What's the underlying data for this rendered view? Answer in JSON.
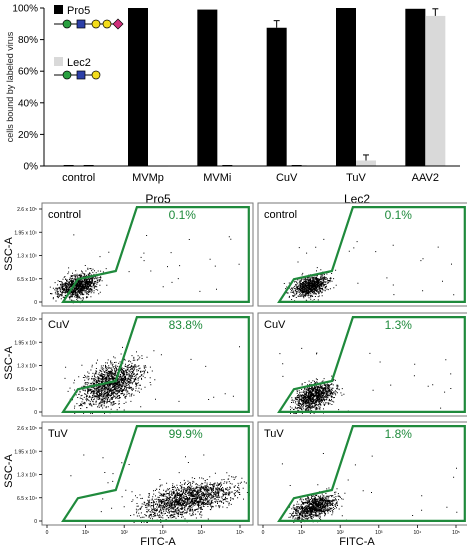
{
  "chart_data": [
    {
      "type": "bar",
      "ylabel": "cells bound by labeled virus",
      "ylim": [
        0,
        100
      ],
      "yticks": [
        "0%",
        "20%",
        "40%",
        "60%",
        "80%",
        "100%"
      ],
      "categories": [
        "control",
        "MVMp",
        "MVMi",
        "CuV",
        "TuV",
        "AAV2"
      ],
      "legend_position": "top-left",
      "series": [
        {
          "name": "Pro5",
          "color": "#000000",
          "values": [
            0.1,
            100,
            99,
            87.5,
            100,
            99.5
          ],
          "errors": [
            0,
            0,
            0,
            4.5,
            0,
            0
          ]
        },
        {
          "name": "Lec2",
          "color": "#d9d9d9",
          "values": [
            0.1,
            0,
            0.2,
            0.5,
            3.5,
            95
          ],
          "errors": [
            0,
            0,
            0,
            0,
            3.5,
            4.5
          ]
        }
      ]
    },
    {
      "type": "scatter",
      "grid": {
        "columns": [
          "Pro5",
          "Lec2"
        ],
        "xlabel": "FITC-A",
        "ylabel": "SSC-A",
        "yticks": [
          "2.6 x 10⁵",
          "1.95 x 10⁵",
          "1.3 x 10⁵",
          "6.5 x 10⁴",
          "0"
        ],
        "xticks": [
          "0",
          "10¹",
          "10²",
          "10³",
          "10⁴",
          "10⁵"
        ],
        "gate_color": "#1f8a3c",
        "panels": [
          {
            "row": 0,
            "col": 0,
            "label": "control",
            "percent": "0.1%"
          },
          {
            "row": 0,
            "col": 1,
            "label": "control",
            "percent": "0.1%"
          },
          {
            "row": 1,
            "col": 0,
            "label": "CuV",
            "percent": "83.8%"
          },
          {
            "row": 1,
            "col": 1,
            "label": "CuV",
            "percent": "1.3%"
          },
          {
            "row": 2,
            "col": 0,
            "label": "TuV",
            "percent": "99.9%"
          },
          {
            "row": 2,
            "col": 1,
            "label": "TuV",
            "percent": "1.8%"
          }
        ]
      }
    }
  ]
}
